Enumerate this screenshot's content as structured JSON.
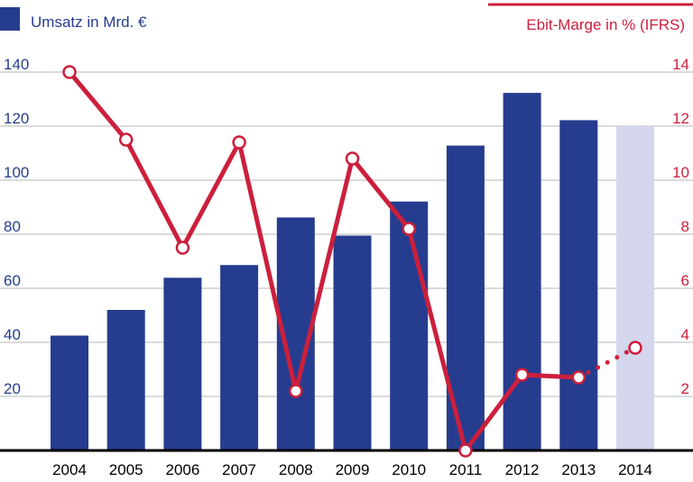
{
  "chart_data": {
    "type": "bar",
    "categories": [
      "2004",
      "2005",
      "2006",
      "2007",
      "2008",
      "2009",
      "2010",
      "2011",
      "2012",
      "2013",
      "2014"
    ],
    "series": [
      {
        "name": "Umsatz in Mrd. €",
        "kind": "bar",
        "axis": "left",
        "values": [
          42.5,
          52.0,
          63.9,
          68.6,
          86.2,
          79.5,
          92.1,
          112.8,
          132.3,
          122.2,
          120
        ],
        "highlight_last": true
      },
      {
        "name": "Ebit-Marge in % (IFRS)",
        "kind": "line",
        "axis": "right",
        "values": [
          14.0,
          11.5,
          7.5,
          11.4,
          2.2,
          10.8,
          8.2,
          0.0,
          2.8,
          2.7,
          3.8
        ],
        "dotted_last_segment": true
      }
    ],
    "y_left": {
      "ticks": [
        20,
        40,
        60,
        80,
        100,
        120,
        140
      ],
      "range": [
        0,
        165
      ]
    },
    "y_right": {
      "ticks": [
        2,
        4,
        6,
        8,
        10,
        12,
        14
      ],
      "range": [
        0,
        16.5
      ]
    },
    "grid": true,
    "legend": {
      "left_label": "Umsatz in Mrd. €",
      "right_label": "Ebit-Marge in % (IFRS)"
    },
    "colors": {
      "bar": "#263c8f",
      "bar_forecast": "#d4d6ee",
      "line": "#cc1f3c",
      "left_axis": "#263c8f",
      "right_axis": "#cc1f3c",
      "grid": "#cfcfcf"
    }
  }
}
